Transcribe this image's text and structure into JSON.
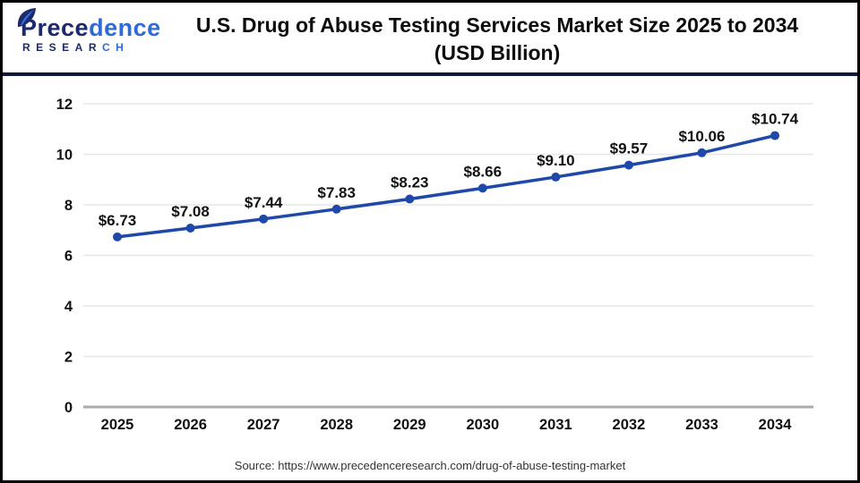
{
  "header": {
    "logo": {
      "brand_part1": "Prece",
      "brand_part2": "dence",
      "sub_part1": "RESEAR",
      "sub_part2": "CH"
    },
    "title_line1": "U.S. Drug of Abuse Testing Services Market Size 2025 to 2034",
    "title_line2": "(USD Billion)"
  },
  "chart_data": {
    "type": "line",
    "title": "U.S. Drug of Abuse Testing Services Market Size 2025 to 2034 (USD Billion)",
    "categories": [
      "2025",
      "2026",
      "2027",
      "2028",
      "2029",
      "2030",
      "2031",
      "2032",
      "2033",
      "2034"
    ],
    "series": [
      {
        "name": "U.S. Drug of Abuse Testing Services Market Size",
        "values": [
          6.73,
          7.08,
          7.44,
          7.83,
          8.23,
          8.66,
          9.1,
          9.57,
          10.06,
          10.74
        ],
        "labels": [
          "$6.73",
          "$7.08",
          "$7.44",
          "$7.83",
          "$8.23",
          "$8.66",
          "$9.10",
          "$9.57",
          "$10.06",
          "$10.74"
        ]
      }
    ],
    "xlabel": "",
    "ylabel": "",
    "ylim": [
      0,
      12
    ],
    "yticks": [
      0,
      2,
      4,
      6,
      8,
      10,
      12
    ],
    "grid": true,
    "legend": "none",
    "marker": "circle"
  },
  "footer": {
    "source": "Source: https://www.precedenceresearch.com/drug-of-abuse-testing-market"
  },
  "colors": {
    "brand_navy": "#1c2a6b",
    "brand_blue": "#2f6bd8",
    "divider_navy": "#0e1838",
    "line_blue": "#1f49a9",
    "grid_gray": "#e7e7e7",
    "axis_gray": "#ababab",
    "text_black": "#111111",
    "source_gray": "#333333"
  }
}
